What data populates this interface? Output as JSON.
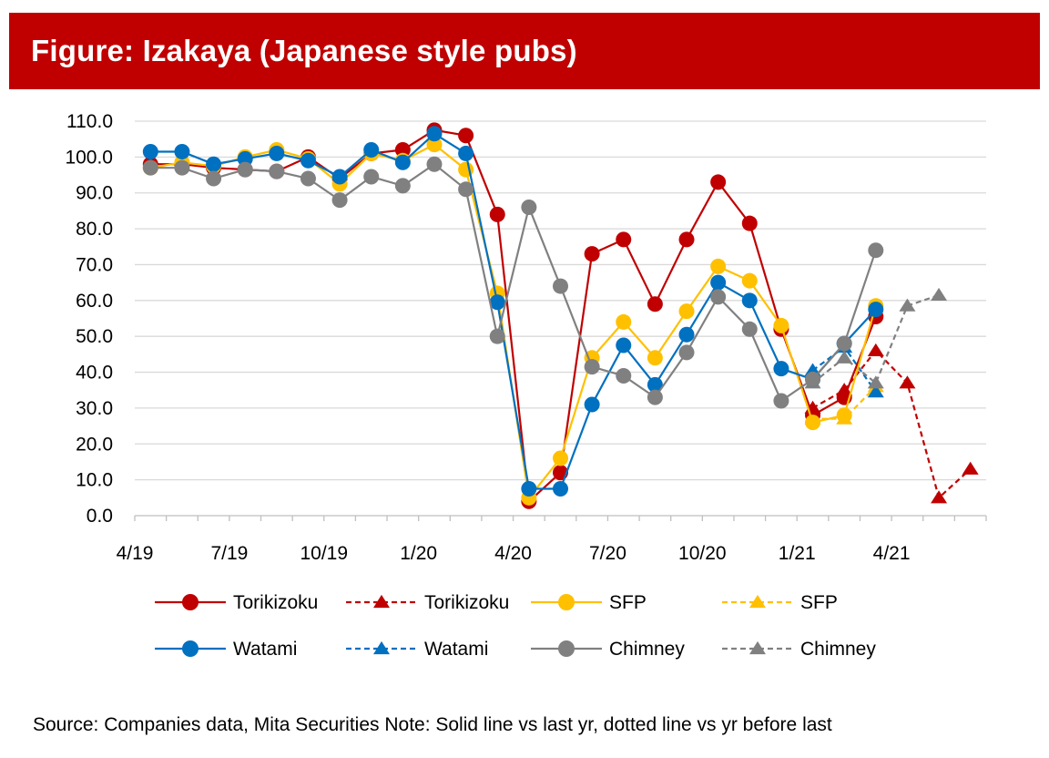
{
  "title": "Figure: Izakaya (Japanese style pubs)",
  "source": "Source: Companies data, Mita Securities Note: Solid line vs last yr, dotted line vs yr before last",
  "chart_data": {
    "type": "line",
    "x": [
      "4/19",
      "5/19",
      "6/19",
      "7/19",
      "8/19",
      "9/19",
      "10/19",
      "11/19",
      "12/19",
      "1/20",
      "2/20",
      "3/20",
      "4/20",
      "5/20",
      "6/20",
      "7/20",
      "8/20",
      "9/20",
      "10/20",
      "11/20",
      "12/20",
      "1/21",
      "2/21",
      "3/21",
      "4/21",
      "5/21",
      "6/21"
    ],
    "x_tick_labels": [
      "4/19",
      "7/19",
      "10/19",
      "1/20",
      "4/20",
      "7/20",
      "10/20",
      "1/21",
      "4/21"
    ],
    "y_tick_labels": [
      "0.0",
      "10.0",
      "20.0",
      "30.0",
      "40.0",
      "50.0",
      "60.0",
      "70.0",
      "80.0",
      "90.0",
      "100.0",
      "110.0"
    ],
    "ylim": [
      0,
      110
    ],
    "grid": true,
    "legend_position": "bottom",
    "series": [
      {
        "name": "Torikizoku",
        "style": "solid",
        "marker": "circle",
        "color": "#c00000",
        "values": [
          98,
          98,
          97,
          96.5,
          96,
          100,
          94,
          101,
          102,
          107.5,
          106,
          84,
          4,
          12,
          73,
          77,
          59,
          77,
          93,
          81.5,
          52,
          28,
          33,
          55.5,
          null,
          null,
          null
        ]
      },
      {
        "name": "SFP",
        "style": "solid",
        "marker": "circle",
        "color": "#ffc000",
        "values": [
          97,
          98.5,
          97.5,
          100,
          102,
          99.5,
          92.5,
          101,
          99,
          103.5,
          96.5,
          62,
          5,
          16,
          44,
          54,
          44,
          57,
          69.5,
          65.5,
          53,
          26,
          28,
          58.5,
          null,
          null,
          null
        ]
      },
      {
        "name": "Watami",
        "style": "solid",
        "marker": "circle",
        "color": "#0070c0",
        "values": [
          101.5,
          101.5,
          98,
          99.5,
          101,
          99,
          94.5,
          102,
          98.5,
          106.5,
          101,
          59.5,
          7.5,
          7.5,
          31,
          47.5,
          36.5,
          50.5,
          65,
          60,
          41,
          38,
          48,
          57.5,
          null,
          null,
          null
        ]
      },
      {
        "name": "Chimney",
        "style": "solid",
        "marker": "circle",
        "color": "#808080",
        "values": [
          97,
          97,
          94,
          96.5,
          96,
          94,
          88,
          94.5,
          92,
          98,
          91,
          50,
          86,
          64,
          41.5,
          39,
          33,
          45.5,
          61,
          52,
          32,
          38,
          48,
          74,
          null,
          null,
          null
        ]
      },
      {
        "name": "Torikizoku",
        "style": "dashed",
        "marker": "triangle",
        "color": "#c00000",
        "values": [
          null,
          null,
          null,
          null,
          null,
          null,
          null,
          null,
          null,
          null,
          null,
          null,
          null,
          null,
          null,
          null,
          null,
          null,
          null,
          null,
          null,
          30,
          35,
          46,
          37,
          5,
          13
        ]
      },
      {
        "name": "SFP",
        "style": "dashed",
        "marker": "triangle",
        "color": "#ffc000",
        "values": [
          null,
          null,
          null,
          null,
          null,
          null,
          null,
          null,
          null,
          null,
          null,
          null,
          null,
          null,
          null,
          null,
          null,
          null,
          null,
          null,
          null,
          27,
          27,
          36,
          null,
          null,
          null
        ]
      },
      {
        "name": "Watami",
        "style": "dashed",
        "marker": "triangle",
        "color": "#0070c0",
        "values": [
          null,
          null,
          null,
          null,
          null,
          null,
          null,
          null,
          null,
          null,
          null,
          null,
          null,
          null,
          null,
          null,
          null,
          null,
          null,
          null,
          null,
          40.5,
          47,
          34.5,
          null,
          null,
          null
        ]
      },
      {
        "name": "Chimney",
        "style": "dashed",
        "marker": "triangle",
        "color": "#808080",
        "values": [
          null,
          null,
          null,
          null,
          null,
          null,
          null,
          null,
          null,
          null,
          null,
          null,
          null,
          null,
          null,
          null,
          null,
          null,
          null,
          null,
          null,
          37,
          44,
          37,
          58.5,
          61.5,
          null
        ]
      }
    ]
  }
}
